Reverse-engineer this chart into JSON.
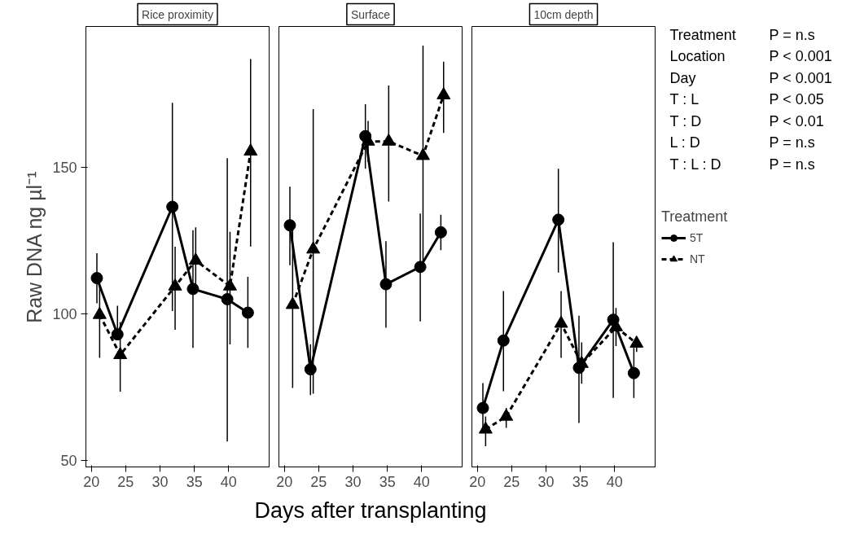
{
  "chart_data": [
    {
      "type": "line",
      "title": "Rice proximity",
      "ylabel": "Raw DNA ng µl⁻¹",
      "xlim": [
        19.2,
        45.9
      ],
      "xticks": [
        20,
        25,
        30,
        35,
        40
      ],
      "ylim": [
        47.8,
        198
      ],
      "yticks": [
        50,
        100,
        150
      ],
      "grid": false,
      "legend": false,
      "series": [
        {
          "color": "#000000",
          "marker": "circle",
          "line_style": "solid",
          "x": [
            20.8,
            23.8,
            31.8,
            34.8,
            39.8,
            42.8
          ],
          "values": [
            112.2,
            93.0,
            136.5,
            108.5,
            105.0,
            100.4
          ],
          "errors": [
            [
              103.6,
              120.7
            ],
            [
              93.0,
              102.8
            ],
            [
              101,
              172
            ],
            [
              88.4,
              128.5
            ],
            [
              56.5,
              153.1
            ],
            [
              88.4,
              112.6
            ]
          ]
        },
        {
          "color": "#000000",
          "marker": "triangle",
          "line_style": "dashed",
          "x": [
            21.2,
            24.2,
            32.2,
            35.2,
            40.2,
            43.2
          ],
          "values": [
            99.7,
            86.0,
            109.4,
            118.2,
            109.4,
            155.4
          ],
          "errors": [
            [
              85,
              114
            ],
            [
              73.5,
              97.2
            ],
            [
              94.6,
              122.9
            ],
            [
              107,
              129.5
            ],
            [
              89.6,
              128
            ],
            [
              123,
              186.9
            ]
          ]
        }
      ]
    },
    {
      "type": "line",
      "title": "Surface",
      "xlabel": "Days after transplanting",
      "xlim": [
        19.2,
        45.9
      ],
      "xticks": [
        20,
        25,
        30,
        35,
        40
      ],
      "ylim": [
        47.8,
        198
      ],
      "tick_labels": "x",
      "grid": false,
      "legend": false,
      "series": [
        {
          "color": "#000000",
          "marker": "circle",
          "line_style": "solid",
          "x": [
            20.8,
            23.8,
            31.8,
            34.8,
            39.8,
            42.8
          ],
          "values": [
            130.2,
            81.1,
            160.6,
            110.1,
            116.0,
            127.8
          ],
          "errors": [
            [
              116.6,
              143.4
            ],
            [
              72.3,
              89.6
            ],
            [
              149.5,
              171.5
            ],
            [
              95.3,
              124.8
            ],
            [
              97.4,
              134.2
            ],
            [
              121.7,
              133.8
            ]
          ]
        },
        {
          "color": "#000000",
          "marker": "triangle",
          "line_style": "dashed",
          "x": [
            21.2,
            24.2,
            32.2,
            35.2,
            40.2,
            43.2
          ],
          "values": [
            103.1,
            122.0,
            158.8,
            158.8,
            153.9,
            174.6
          ],
          "errors": [
            [
              74.7,
              131.5
            ],
            [
              72.8,
              169.8
            ],
            [
              151.8,
              165.8
            ],
            [
              138.3,
              177.9
            ],
            [
              116,
              191.5
            ],
            [
              161.7,
              186
            ]
          ]
        }
      ]
    },
    {
      "type": "line",
      "title": "10cm depth",
      "xlim": [
        19.2,
        45.9
      ],
      "xticks": [
        20,
        25,
        30,
        35,
        40
      ],
      "ylim": [
        47.8,
        198
      ],
      "tick_labels": "x",
      "grid": false,
      "legend": "right",
      "legend_title": "Treatment",
      "annotations": [
        "Treatment",
        "P = n.s",
        "Location",
        "P < 0.001",
        "Day",
        "P < 0.001",
        "T : L",
        "P < 0.05",
        "T : D",
        "P < 0.01",
        "L : D",
        "P = n.s",
        "T : L : D",
        "P = n.s"
      ],
      "series": [
        {
          "name": "5T",
          "color": "#000000",
          "marker": "circle",
          "line_style": "solid",
          "x": [
            20.8,
            23.8,
            31.8,
            34.8,
            39.8,
            42.8
          ],
          "values": [
            67.9,
            90.9,
            132.1,
            81.6,
            98.0,
            79.8
          ],
          "errors": [
            [
              59.4,
              76.4
            ],
            [
              73.6,
              107.8
            ],
            [
              114.1,
              149.5
            ],
            [
              62.8,
              99.4
            ],
            [
              71.3,
              124.4
            ],
            [
              71.3,
              88.4
            ]
          ]
        },
        {
          "name": "NT",
          "color": "#000000",
          "marker": "triangle",
          "line_style": "dashed",
          "x": [
            21.2,
            24.2,
            32.2,
            35.2,
            40.2,
            43.2
          ],
          "values": [
            60.6,
            65.0,
            96.7,
            83.0,
            95.5,
            89.9
          ],
          "errors": [
            [
              54.9,
              65
            ],
            [
              61.1,
              67.9
            ],
            [
              85,
              107.8
            ],
            [
              76.2,
              90.3
            ],
            [
              89,
              102
            ],
            [
              87,
              92.3
            ]
          ]
        }
      ]
    }
  ]
}
